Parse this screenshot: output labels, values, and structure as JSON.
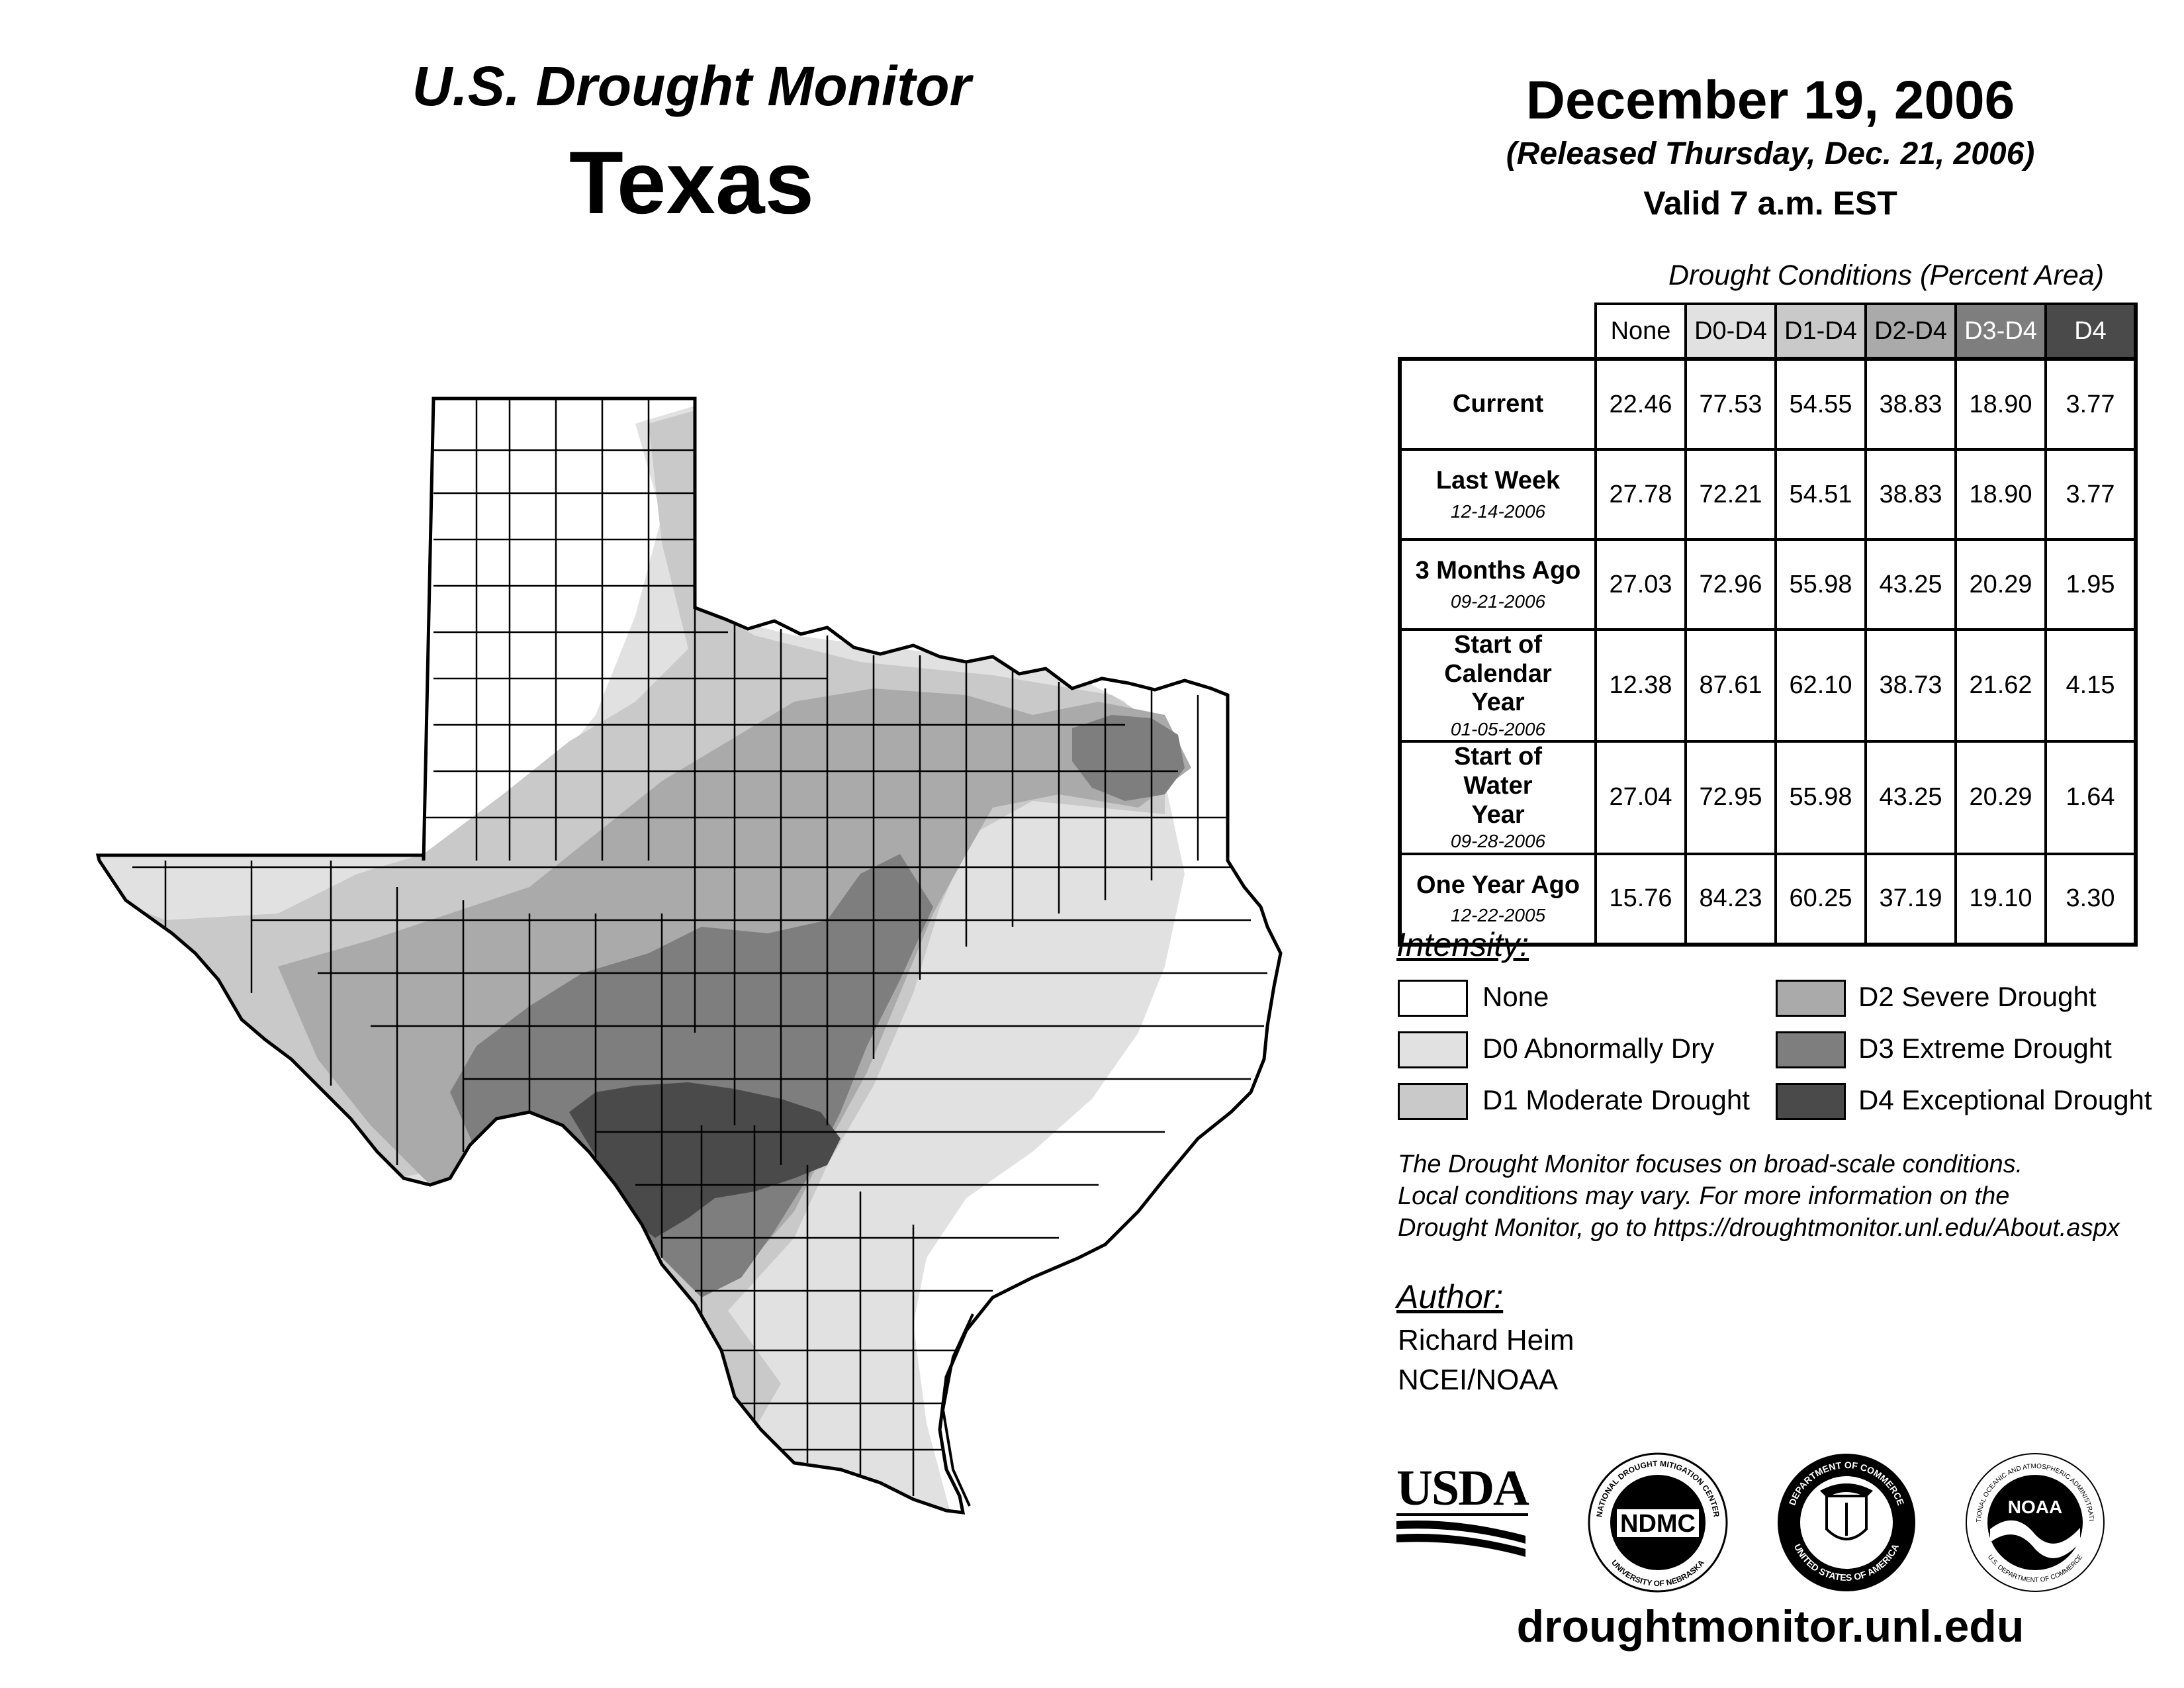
{
  "header": {
    "title": "U.S. Drought Monitor",
    "region": "Texas",
    "date": "December 19, 2006",
    "released": "(Released Thursday, Dec. 21, 2006)",
    "valid": "Valid 7 a.m. EST"
  },
  "table": {
    "caption": "Drought Conditions (Percent Area)",
    "columns": [
      {
        "label": "None",
        "color": "#ffffff",
        "text_color": "#000000"
      },
      {
        "label": "D0-D4",
        "color": "#e1e1e1",
        "text_color": "#000000"
      },
      {
        "label": "D1-D4",
        "color": "#c9c9c9",
        "text_color": "#000000"
      },
      {
        "label": "D2-D4",
        "color": "#aaaaaa",
        "text_color": "#000000"
      },
      {
        "label": "D3-D4",
        "color": "#7e7e7e",
        "text_color": "#ffffff"
      },
      {
        "label": "D4",
        "color": "#4a4a4a",
        "text_color": "#ffffff"
      }
    ],
    "rows": [
      {
        "label": "Current",
        "date": "",
        "values": [
          "22.46",
          "77.53",
          "54.55",
          "38.83",
          "18.90",
          "3.77"
        ]
      },
      {
        "label": "Last Week",
        "date": "12-14-2006",
        "values": [
          "27.78",
          "72.21",
          "54.51",
          "38.83",
          "18.90",
          "3.77"
        ]
      },
      {
        "label": "3 Months Ago",
        "date": "09-21-2006",
        "values": [
          "27.03",
          "72.96",
          "55.98",
          "43.25",
          "20.29",
          "1.95"
        ]
      },
      {
        "label": "Start of Calendar Year",
        "date": "01-05-2006",
        "values": [
          "12.38",
          "87.61",
          "62.10",
          "38.73",
          "21.62",
          "4.15"
        ]
      },
      {
        "label": "Start of Water Year",
        "date": "09-28-2006",
        "values": [
          "27.04",
          "72.95",
          "55.98",
          "43.25",
          "20.29",
          "1.64"
        ]
      },
      {
        "label": "One Year Ago",
        "date": "12-22-2005",
        "values": [
          "15.76",
          "84.23",
          "60.25",
          "37.19",
          "19.10",
          "3.30"
        ]
      }
    ]
  },
  "legend": {
    "heading": "Intensity:",
    "items": [
      {
        "label": "None",
        "color": "#ffffff"
      },
      {
        "label": "D0 Abnormally Dry",
        "color": "#e1e1e1"
      },
      {
        "label": "D1 Moderate Drought",
        "color": "#c9c9c9"
      },
      {
        "label": "D2 Severe Drought",
        "color": "#aaaaaa"
      },
      {
        "label": "D3 Extreme Drought",
        "color": "#7e7e7e"
      },
      {
        "label": "D4 Exceptional Drought",
        "color": "#4a4a4a"
      }
    ]
  },
  "note": {
    "line1": "The Drought Monitor focuses on broad-scale conditions.",
    "line2": "Local conditions may vary. For more information on the",
    "line3": "Drought Monitor, go to https://droughtmonitor.unl.edu/About.aspx"
  },
  "author": {
    "heading": "Author:",
    "name": "Richard Heim",
    "org": "NCEI/NOAA"
  },
  "logos": {
    "usda": "USDA",
    "ndmc": "NDMC",
    "ndmc_ring_top": "NATIONAL DROUGHT MITIGATION CENTER",
    "ndmc_ring_bottom": "UNIVERSITY OF NEBRASKA",
    "doc_ring_top": "DEPARTMENT OF COMMERCE",
    "doc_ring_bottom": "UNITED STATES OF AMERICA",
    "noaa": "NOAA",
    "noaa_ring_top": "NATIONAL OCEANIC AND ATMOSPHERIC ADMINISTRATION",
    "noaa_ring_bottom": "U.S. DEPARTMENT OF COMMERCE"
  },
  "footer": {
    "url": "droughtmonitor.unl.edu"
  }
}
